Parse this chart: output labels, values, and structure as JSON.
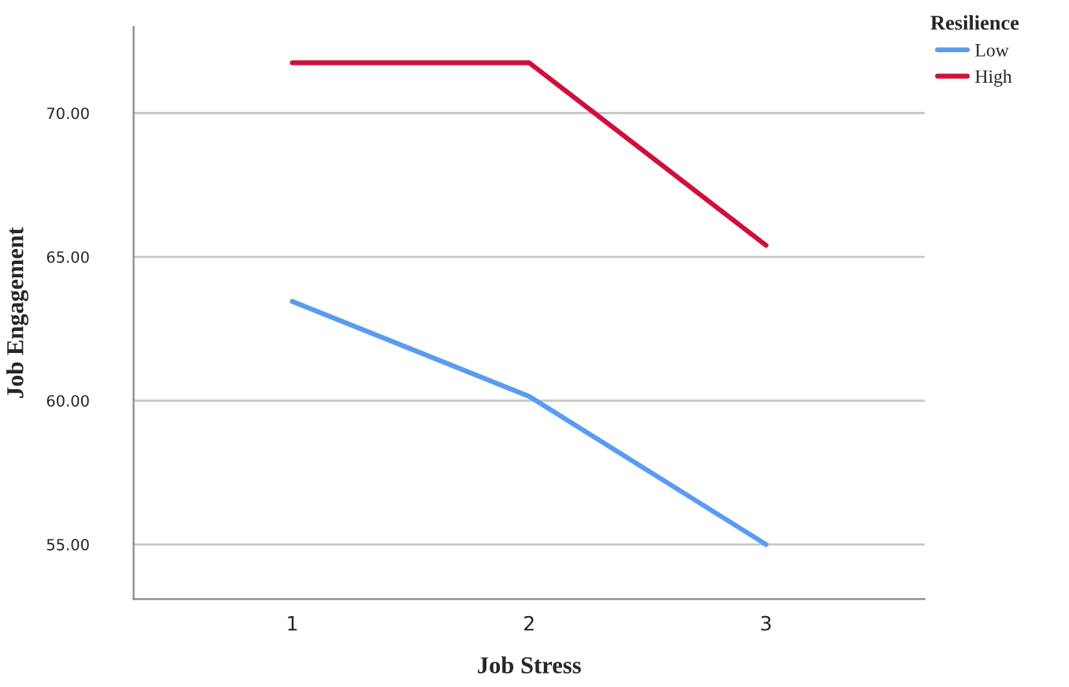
{
  "chart_data": {
    "type": "line",
    "xlabel": "Job Stress",
    "ylabel": "Job Engagement",
    "legend_title": "Resilience",
    "x": [
      1,
      2,
      3
    ],
    "series": [
      {
        "name": "Low",
        "color": "#5b9bf0",
        "values": [
          63.45,
          60.15,
          55.0
        ]
      },
      {
        "name": "High",
        "color": "#d0103a",
        "values": [
          71.75,
          71.75,
          65.4
        ]
      }
    ],
    "xlim": [
      0.33,
      3.67
    ],
    "xticks": [
      1,
      2,
      3
    ],
    "ylim": [
      53.1,
      73.0
    ],
    "yticks": [
      {
        "value": 55,
        "label": "55.00"
      },
      {
        "value": 60,
        "label": "60.00"
      },
      {
        "value": 65,
        "label": "65.00"
      },
      {
        "value": 70,
        "label": "70.00"
      }
    ],
    "grid": "y",
    "legend": "top right",
    "marker": "none",
    "line_style": "solid"
  }
}
